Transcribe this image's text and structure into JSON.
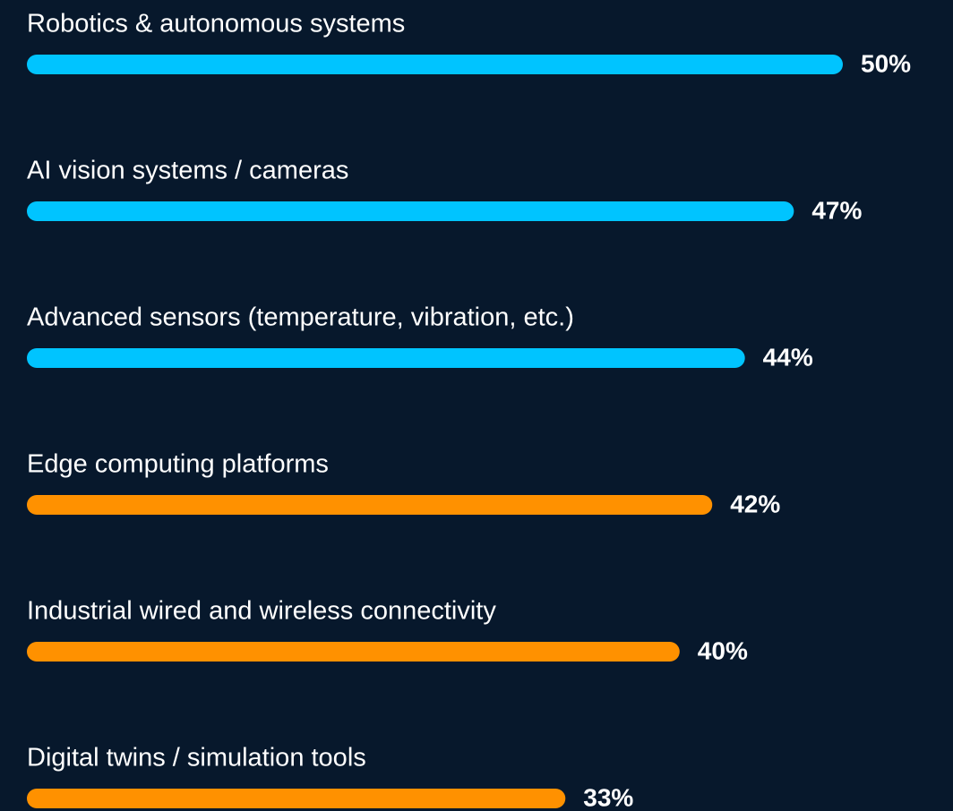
{
  "chart_data": {
    "type": "bar",
    "orientation": "horizontal",
    "categories": [
      "Robotics & autonomous systems",
      "AI vision systems / cameras",
      "Advanced sensors (temperature, vibration, etc.)",
      "Edge computing platforms",
      "Industrial wired and wireless connectivity",
      "Digital twins / simulation tools"
    ],
    "values": [
      50,
      47,
      44,
      42,
      40,
      33
    ],
    "value_labels": [
      "50%",
      "47%",
      "44%",
      "42%",
      "40%",
      "33%"
    ],
    "colors": [
      "#00c4ff",
      "#00c4ff",
      "#00c4ff",
      "#ff9100",
      "#ff9100",
      "#ff9100"
    ]
  }
}
